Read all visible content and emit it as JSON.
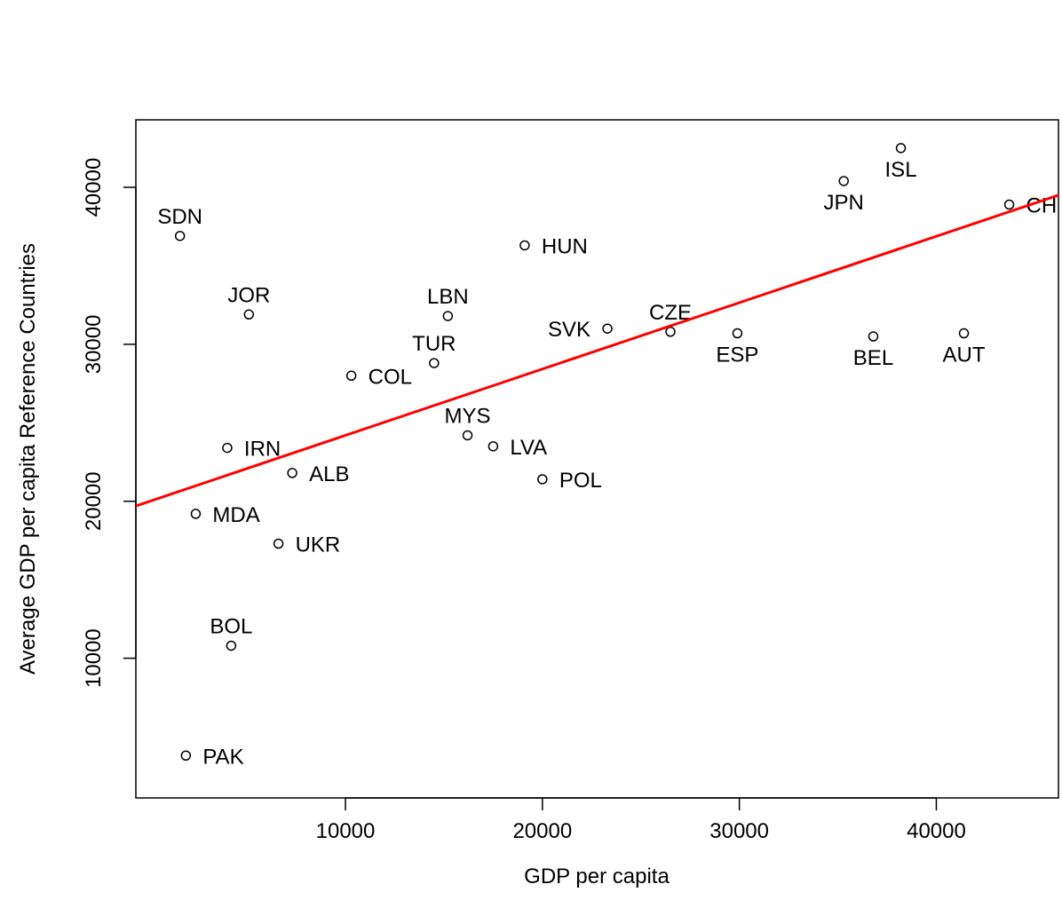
{
  "chart_data": {
    "type": "scatter",
    "title": "",
    "xlabel": "GDP per capita",
    "ylabel": "Average GDP per capita Reference Countries",
    "xlim": [
      -640,
      46200
    ],
    "ylim": [
      1100,
      44300
    ],
    "xticks": [
      10000,
      20000,
      30000,
      40000
    ],
    "yticks": [
      10000,
      20000,
      30000,
      40000
    ],
    "grid": false,
    "legend": "none",
    "point_color": "#000000",
    "fit_line": {
      "color": "#ff0000",
      "x": [
        -640,
        46200
      ],
      "y": [
        19700,
        39500
      ]
    },
    "points": [
      {
        "label": "SDN",
        "x": 1600,
        "y": 36900,
        "pos": "above"
      },
      {
        "label": "JOR",
        "x": 5100,
        "y": 31900,
        "pos": "above"
      },
      {
        "label": "HUN",
        "x": 19100,
        "y": 36300,
        "pos": "right"
      },
      {
        "label": "LBN",
        "x": 15200,
        "y": 31800,
        "pos": "above"
      },
      {
        "label": "TUR",
        "x": 14500,
        "y": 28800,
        "pos": "above"
      },
      {
        "label": "COL",
        "x": 10300,
        "y": 28000,
        "pos": "right"
      },
      {
        "label": "SVK",
        "x": 23300,
        "y": 31000,
        "pos": "left"
      },
      {
        "label": "CZE",
        "x": 26500,
        "y": 30800,
        "pos": "above"
      },
      {
        "label": "ESP",
        "x": 29900,
        "y": 30700,
        "pos": "below"
      },
      {
        "label": "JPN",
        "x": 35300,
        "y": 40400,
        "pos": "below"
      },
      {
        "label": "ISL",
        "x": 38200,
        "y": 42500,
        "pos": "below"
      },
      {
        "label": "CHE",
        "x": 43700,
        "y": 38900,
        "pos": "right"
      },
      {
        "label": "BEL",
        "x": 36800,
        "y": 30500,
        "pos": "below"
      },
      {
        "label": "AUT",
        "x": 41400,
        "y": 30700,
        "pos": "below"
      },
      {
        "label": "MYS",
        "x": 16200,
        "y": 24200,
        "pos": "above"
      },
      {
        "label": "LVA",
        "x": 17500,
        "y": 23500,
        "pos": "right"
      },
      {
        "label": "POL",
        "x": 20000,
        "y": 21400,
        "pos": "right"
      },
      {
        "label": "IRN",
        "x": 4000,
        "y": 23400,
        "pos": "right"
      },
      {
        "label": "ALB",
        "x": 7300,
        "y": 21800,
        "pos": "right"
      },
      {
        "label": "MDA",
        "x": 2400,
        "y": 19200,
        "pos": "right"
      },
      {
        "label": "UKR",
        "x": 6600,
        "y": 17300,
        "pos": "right"
      },
      {
        "label": "BOL",
        "x": 4200,
        "y": 10800,
        "pos": "above"
      },
      {
        "label": "PAK",
        "x": 1900,
        "y": 3800,
        "pos": "right"
      }
    ]
  }
}
